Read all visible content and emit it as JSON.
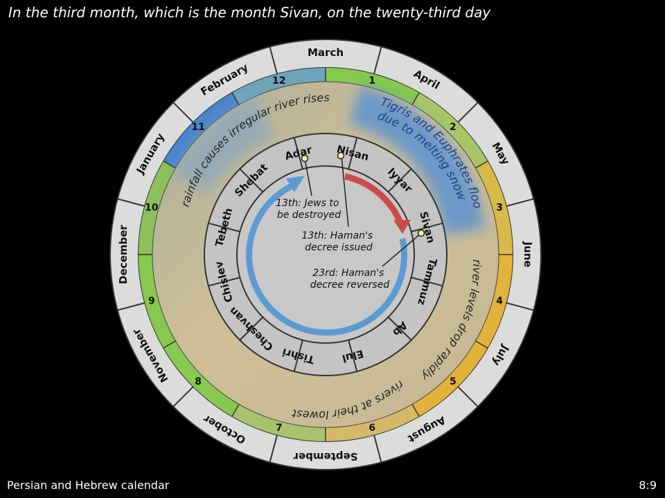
{
  "slide": {
    "title": "In the third month, which is the month Sivan, on the twenty-third day",
    "footer_left": "Persian and Hebrew calendar",
    "page_number": "8:9"
  },
  "outer_ring": {
    "months": [
      "March",
      "April",
      "May",
      "June",
      "July",
      "August",
      "September",
      "October",
      "November",
      "December",
      "January",
      "February"
    ]
  },
  "number_ring": {
    "numbers": [
      "1",
      "2",
      "3",
      "4",
      "5",
      "6",
      "7",
      "8",
      "9",
      "10",
      "11",
      "12"
    ]
  },
  "hebrew_ring": {
    "months": [
      "Nisan",
      "Iyyar",
      "Sivan",
      "Tammuz",
      "Ab",
      "Elul",
      "Tishri",
      "Cheshvan",
      "Chislev",
      "Tebeth",
      "Shebat",
      "Adar"
    ]
  },
  "seasons": {
    "flood": "Tigris and Euphrates flood due to melting snow",
    "drop": "river levels drop rapidly",
    "lowest": "rivers at their lowest",
    "rainfall": "rainfall causes irregular river rises"
  },
  "events": {
    "adar": "13th: Jews to be destroyed",
    "nisan": "13th: Haman's decree issued",
    "sivan": "23rd: Haman's decree reversed"
  },
  "colors": {
    "spring_green": "#86c850",
    "summer_gold": "#e2b23a",
    "winter_blue": "#4a84cc",
    "arrow_red": "#cc4c4c",
    "arrow_blue": "#5b9bd2"
  }
}
